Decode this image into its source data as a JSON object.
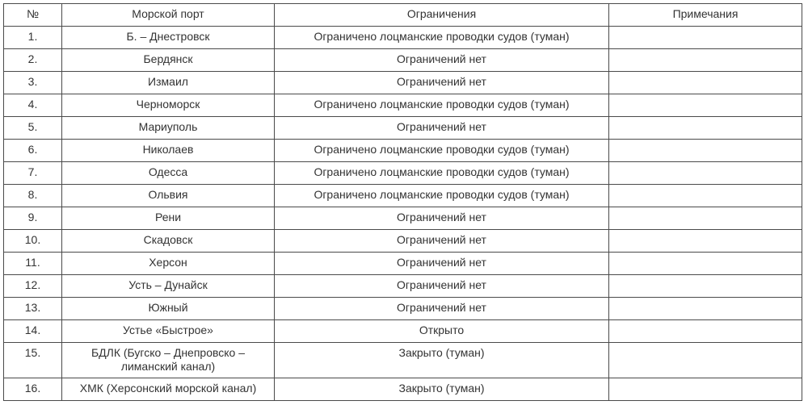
{
  "headers": [
    "№",
    "Морской порт",
    "Ограничения",
    "Примечания"
  ],
  "rows": [
    {
      "num": "1.",
      "port": "Б. – Днестровск",
      "restriction": "Ограничено лоцманские проводки судов (туман)",
      "note": ""
    },
    {
      "num": "2.",
      "port": "Бердянск",
      "restriction": "Ограничений нет",
      "note": ""
    },
    {
      "num": "3.",
      "port": "Измаил",
      "restriction": "Ограничений нет",
      "note": ""
    },
    {
      "num": "4.",
      "port": "Черноморск",
      "restriction": "Ограничено лоцманские проводки судов (туман)",
      "note": ""
    },
    {
      "num": "5.",
      "port": "Мариуполь",
      "restriction": "Ограничений нет",
      "note": ""
    },
    {
      "num": "6.",
      "port": "Николаев",
      "restriction": "Ограничено лоцманские проводки судов (туман)",
      "note": ""
    },
    {
      "num": "7.",
      "port": "Одесса",
      "restriction": "Ограничено лоцманские проводки судов (туман)",
      "note": ""
    },
    {
      "num": "8.",
      "port": "Ольвия",
      "restriction": "Ограничено лоцманские проводки судов (туман)",
      "note": ""
    },
    {
      "num": "9.",
      "port": "Рени",
      "restriction": "Ограничений нет",
      "note": ""
    },
    {
      "num": "10.",
      "port": "Скадовск",
      "restriction": "Ограничений нет",
      "note": ""
    },
    {
      "num": "11.",
      "port": "Херсон",
      "restriction": "Ограничений нет",
      "note": ""
    },
    {
      "num": "12.",
      "port": "Усть – Дунайск",
      "restriction": "Ограничений нет",
      "note": ""
    },
    {
      "num": "13.",
      "port": "Южный",
      "restriction": "Ограничений нет",
      "note": ""
    },
    {
      "num": "14.",
      "port": "Устье «Быстрое»",
      "restriction": "Открыто",
      "note": ""
    },
    {
      "num": "15.",
      "port": "БДЛК (Бугско – Днепровско – лиманский канал)",
      "restriction": "Закрыто (туман)",
      "note": ""
    },
    {
      "num": "16.",
      "port": "ХМК (Херсонский морской канал)",
      "restriction": "Закрыто (туман)",
      "note": ""
    }
  ]
}
